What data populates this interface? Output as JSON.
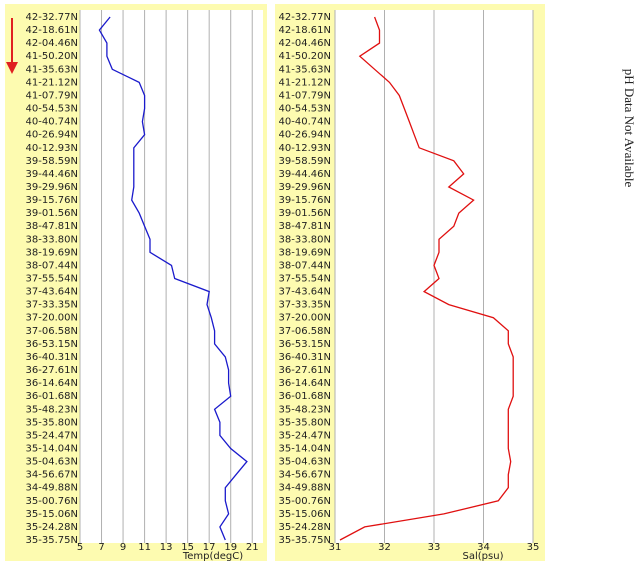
{
  "chart_data": [
    {
      "type": "line",
      "x_label": "Temp(degC)",
      "color": "#1a1acc",
      "categories": [
        "42-32.77N",
        "42-18.61N",
        "42-04.46N",
        "41-50.20N",
        "41-35.63N",
        "41-21.12N",
        "41-07.79N",
        "40-54.53N",
        "40-40.74N",
        "40-26.94N",
        "40-12.93N",
        "39-58.59N",
        "39-44.46N",
        "39-29.96N",
        "39-15.76N",
        "39-01.56N",
        "38-47.81N",
        "38-33.80N",
        "38-19.69N",
        "38-07.44N",
        "37-55.54N",
        "37-43.64N",
        "37-33.35N",
        "37-20.00N",
        "37-06.58N",
        "36-53.15N",
        "36-40.31N",
        "36-27.61N",
        "36-14.64N",
        "36-01.68N",
        "35-48.23N",
        "35-35.80N",
        "35-24.47N",
        "35-14.04N",
        "35-04.63N",
        "34-56.67N",
        "34-49.88N",
        "35-00.76N",
        "35-15.06N",
        "35-24.28N",
        "35-35.75N"
      ],
      "values": [
        7.8,
        6.8,
        7.5,
        7.5,
        8,
        10.5,
        11,
        11,
        10.8,
        11,
        10,
        10,
        10,
        10,
        9.8,
        10.5,
        11,
        11.5,
        11.5,
        13.5,
        13.8,
        17,
        16.8,
        17.2,
        17.5,
        17.5,
        18.5,
        18.8,
        18.8,
        19,
        17.5,
        18,
        18,
        19,
        20.5,
        19.5,
        18.5,
        18.5,
        18.8,
        18,
        18.5
      ],
      "xlim": [
        5,
        22
      ],
      "xticks": [
        5,
        7,
        9,
        11,
        13,
        15,
        17,
        19,
        21
      ],
      "grid": true
    },
    {
      "type": "line",
      "x_label": "Sal(psu)",
      "color": "#e01010",
      "categories": [
        "42-32.77N",
        "42-18.61N",
        "42-04.46N",
        "41-50.20N",
        "41-35.63N",
        "41-21.12N",
        "41-07.79N",
        "40-54.53N",
        "40-40.74N",
        "40-26.94N",
        "40-12.93N",
        "39-58.59N",
        "39-44.46N",
        "39-29.96N",
        "39-15.76N",
        "39-01.56N",
        "38-47.81N",
        "38-33.80N",
        "38-19.69N",
        "38-07.44N",
        "37-55.54N",
        "37-43.64N",
        "37-33.35N",
        "37-20.00N",
        "37-06.58N",
        "36-53.15N",
        "36-40.31N",
        "36-27.61N",
        "36-14.64N",
        "36-01.68N",
        "35-48.23N",
        "35-35.80N",
        "35-24.47N",
        "35-14.04N",
        "35-04.63N",
        "34-56.67N",
        "34-49.88N",
        "35-00.76N",
        "35-15.06N",
        "35-24.28N",
        "35-35.75N"
      ],
      "values": [
        31.8,
        31.9,
        31.9,
        31.5,
        31.8,
        32.1,
        32.3,
        32.4,
        32.5,
        32.6,
        32.7,
        33.4,
        33.6,
        33.3,
        33.8,
        33.5,
        33.4,
        33.1,
        33.1,
        33.0,
        33.1,
        32.8,
        33.3,
        34.2,
        34.5,
        34.5,
        34.6,
        34.6,
        34.6,
        34.6,
        34.5,
        34.5,
        34.5,
        34.5,
        34.55,
        34.5,
        34.5,
        34.3,
        33.2,
        31.6,
        31.1
      ],
      "xlim": [
        31,
        35
      ],
      "xticks": [
        31,
        32,
        33,
        34,
        35
      ],
      "grid": true
    }
  ],
  "side_text": "pH Data Not Available"
}
